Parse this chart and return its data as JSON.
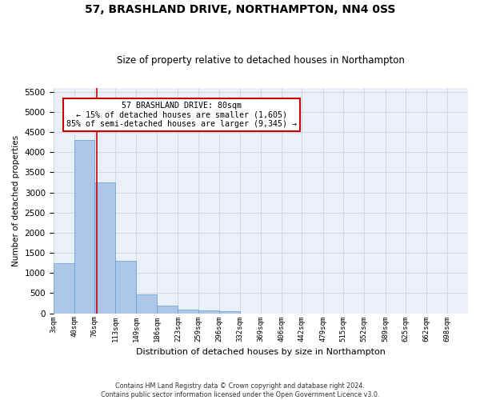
{
  "title1": "57, BRASHLAND DRIVE, NORTHAMPTON, NN4 0SS",
  "title2": "Size of property relative to detached houses in Northampton",
  "xlabel": "Distribution of detached houses by size in Northampton",
  "ylabel": "Number of detached properties",
  "footer1": "Contains HM Land Registry data © Crown copyright and database right 2024.",
  "footer2": "Contains public sector information licensed under the Open Government Licence v3.0.",
  "annotation_title": "57 BRASHLAND DRIVE: 80sqm",
  "annotation_line1": "← 15% of detached houses are smaller (1,605)",
  "annotation_line2": "85% of semi-detached houses are larger (9,345) →",
  "property_size": 80,
  "bar_edges": [
    3,
    40,
    76,
    113,
    149,
    186,
    223,
    259,
    296,
    332,
    369,
    406,
    442,
    479,
    515,
    552,
    589,
    625,
    662,
    698,
    735
  ],
  "bar_heights": [
    1250,
    4300,
    3250,
    1300,
    475,
    200,
    90,
    70,
    55,
    0,
    0,
    0,
    0,
    0,
    0,
    0,
    0,
    0,
    0,
    0
  ],
  "bar_color": "#aec6e8",
  "bar_edgecolor": "#5a9fd4",
  "vline_color": "#cc0000",
  "vline_x": 80,
  "ylim": [
    0,
    5600
  ],
  "yticks": [
    0,
    500,
    1000,
    1500,
    2000,
    2500,
    3000,
    3500,
    4000,
    4500,
    5000,
    5500
  ],
  "annotation_box_color": "#ffffff",
  "annotation_box_edgecolor": "#cc0000",
  "grid_color": "#d0d8e8",
  "bg_color": "#eaeff8"
}
